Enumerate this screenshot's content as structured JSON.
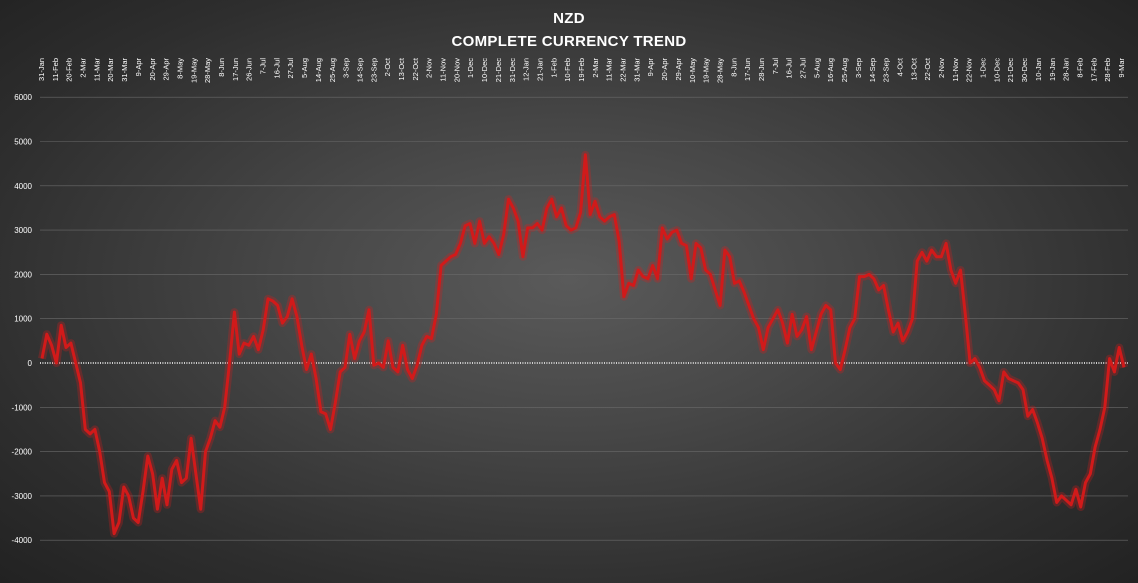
{
  "chart_data": {
    "type": "line",
    "title": "NZD",
    "subtitle": "COMPLETE CURRENCY TREND",
    "xlabel": "",
    "ylabel": "",
    "ylim": [
      -5000,
      6000
    ],
    "yticks": [
      6000,
      5000,
      4000,
      3000,
      2000,
      1000,
      0,
      -1000,
      -2000,
      -3000,
      -4000
    ],
    "grid": true,
    "legend": "none",
    "line_color": "#d11a1a",
    "x_tick_labels": [
      "31-Jan",
      "11-Feb",
      "20-Feb",
      "2-Mar",
      "11-Mar",
      "20-Mar",
      "31-Mar",
      "9-Apr",
      "20-Apr",
      "29-Apr",
      "8-May",
      "19-May",
      "28-May",
      "8-Jun",
      "17-Jun",
      "26-Jun",
      "7-Jul",
      "16-Jul",
      "27-Jul",
      "5-Aug",
      "14-Aug",
      "25-Aug",
      "3-Sep",
      "14-Sep",
      "23-Sep",
      "2-Oct",
      "13-Oct",
      "22-Oct",
      "2-Nov",
      "11-Nov",
      "20-Nov",
      "1-Dec",
      "10-Dec",
      "21-Dec",
      "31-Dec",
      "12-Jan",
      "21-Jan",
      "1-Feb",
      "10-Feb",
      "19-Feb",
      "2-Mar",
      "11-Mar",
      "22-Mar",
      "31-Mar",
      "9-Apr",
      "20-Apr",
      "29-Apr",
      "10-May",
      "19-May",
      "28-May",
      "8-Jun",
      "17-Jun",
      "28-Jun",
      "7-Jul",
      "16-Jul",
      "27-Jul",
      "5-Aug",
      "16-Aug",
      "25-Aug",
      "3-Sep",
      "14-Sep",
      "23-Sep",
      "4-Oct",
      "13-Oct",
      "22-Oct",
      "2-Nov",
      "11-Nov",
      "22-Nov",
      "1-Dec",
      "10-Dec",
      "21-Dec",
      "30-Dec",
      "10-Jan",
      "19-Jan",
      "28-Jan",
      "8-Feb",
      "17-Feb",
      "28-Feb",
      "9-Mar"
    ],
    "series": [
      {
        "values": [
          100,
          650,
          400,
          0,
          850,
          350,
          450,
          0,
          -450,
          -1500,
          -1600,
          -1500,
          -2000,
          -2700,
          -2900,
          -3850,
          -3600,
          -2800,
          -3000,
          -3500,
          -3600,
          -2900,
          -2100,
          -2500,
          -3300,
          -2600,
          -3200,
          -2400,
          -2200,
          -2700,
          -2600,
          -1700,
          -2500,
          -3300,
          -2000,
          -1700,
          -1300,
          -1450,
          -1000,
          0,
          1150,
          200,
          450,
          400,
          600,
          300,
          750,
          1450,
          1400,
          1300,
          900,
          1050,
          1450,
          1050,
          400,
          -150,
          200,
          -350,
          -1100,
          -1150,
          -1500,
          -900,
          -200,
          -100,
          650,
          100,
          500,
          700,
          1200,
          -50,
          0,
          -100,
          500,
          -100,
          -200,
          400,
          -150,
          -350,
          -50,
          400,
          600,
          550,
          1100,
          2200,
          2300,
          2400,
          2450,
          2700,
          3100,
          3150,
          2700,
          3200,
          2700,
          2850,
          2700,
          2450,
          2900,
          3700,
          3500,
          3200,
          2400,
          3050,
          3050,
          3150,
          3000,
          3500,
          3700,
          3300,
          3500,
          3100,
          3000,
          3050,
          3400,
          4700,
          3350,
          3650,
          3300,
          3200,
          3300,
          3350,
          2750,
          1500,
          1800,
          1750,
          2100,
          1950,
          1900,
          2200,
          1900,
          3050,
          2800,
          2950,
          3000,
          2700,
          2650,
          1900,
          2700,
          2600,
          2100,
          2000,
          1650,
          1300,
          2550,
          2400,
          1800,
          1850,
          1600,
          1300,
          1000,
          800,
          300,
          800,
          1000,
          1200,
          900,
          450,
          1100,
          600,
          750,
          1050,
          300,
          700,
          1100,
          1300,
          1200,
          0,
          -150,
          300,
          800,
          1000,
          1950,
          1950,
          2000,
          1900,
          1650,
          1750,
          1200,
          700,
          900,
          500,
          700,
          1000,
          2300,
          2500,
          2300,
          2550,
          2400,
          2400,
          2700,
          2100,
          1800,
          2100,
          1100,
          0,
          100,
          -100,
          -400,
          -500,
          -600,
          -850,
          -200,
          -350,
          -400,
          -450,
          -600,
          -1200,
          -1050,
          -1350,
          -1700,
          -2200,
          -2600,
          -3150,
          -3000,
          -3100,
          -3200,
          -2850,
          -3250,
          -2700,
          -2500,
          -1900,
          -1500,
          -1000,
          100,
          -200,
          350,
          -100
        ]
      }
    ]
  }
}
